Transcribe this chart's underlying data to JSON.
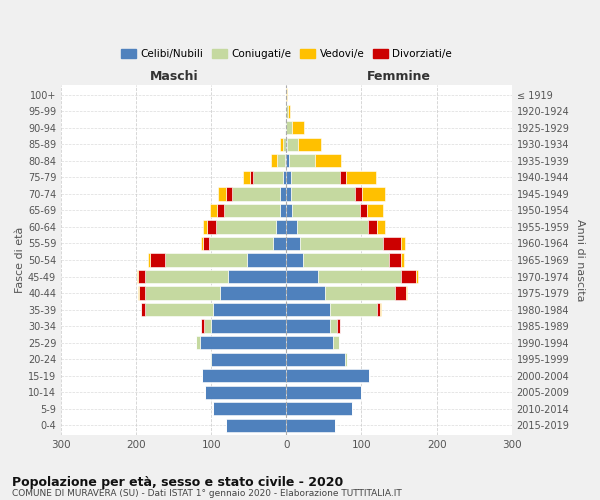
{
  "age_groups": [
    "0-4",
    "5-9",
    "10-14",
    "15-19",
    "20-24",
    "25-29",
    "30-34",
    "35-39",
    "40-44",
    "45-49",
    "50-54",
    "55-59",
    "60-64",
    "65-69",
    "70-74",
    "75-79",
    "80-84",
    "85-89",
    "90-94",
    "95-99",
    "100+"
  ],
  "birth_years": [
    "2015-2019",
    "2010-2014",
    "2005-2009",
    "2000-2004",
    "1995-1999",
    "1990-1994",
    "1985-1989",
    "1980-1984",
    "1975-1979",
    "1970-1974",
    "1965-1969",
    "1960-1964",
    "1955-1959",
    "1950-1954",
    "1945-1949",
    "1940-1944",
    "1935-1939",
    "1930-1934",
    "1925-1929",
    "1920-1924",
    "≤ 1919"
  ],
  "colors": {
    "celibi": "#4f81bd",
    "coniugati": "#c5d9a0",
    "vedovi": "#ffc000",
    "divorziati": "#cc0000"
  },
  "maschi": {
    "celibi": [
      80,
      98,
      108,
      112,
      100,
      115,
      100,
      98,
      88,
      78,
      52,
      18,
      14,
      8,
      8,
      4,
      2,
      1,
      0,
      0,
      0
    ],
    "coniugati": [
      0,
      0,
      0,
      0,
      2,
      5,
      10,
      90,
      100,
      110,
      110,
      85,
      80,
      75,
      65,
      40,
      10,
      4,
      2,
      0,
      0
    ],
    "vedovi": [
      0,
      0,
      0,
      0,
      0,
      0,
      0,
      0,
      1,
      1,
      2,
      3,
      5,
      8,
      10,
      10,
      8,
      4,
      0,
      0,
      0
    ],
    "divorziati": [
      0,
      0,
      0,
      0,
      0,
      0,
      3,
      5,
      8,
      10,
      20,
      8,
      12,
      10,
      8,
      4,
      0,
      0,
      0,
      0,
      0
    ]
  },
  "femmine": {
    "celibi": [
      65,
      88,
      100,
      110,
      78,
      62,
      58,
      58,
      52,
      42,
      22,
      18,
      14,
      8,
      6,
      6,
      3,
      1,
      0,
      0,
      0
    ],
    "coniugati": [
      0,
      0,
      0,
      0,
      3,
      8,
      10,
      62,
      92,
      110,
      115,
      110,
      95,
      90,
      85,
      65,
      35,
      15,
      8,
      2,
      0
    ],
    "vedovi": [
      0,
      0,
      0,
      0,
      0,
      0,
      0,
      1,
      2,
      3,
      5,
      5,
      10,
      20,
      30,
      40,
      35,
      30,
      15,
      3,
      1
    ],
    "divorziati": [
      0,
      0,
      0,
      0,
      0,
      0,
      3,
      5,
      15,
      20,
      15,
      25,
      12,
      10,
      10,
      8,
      0,
      0,
      0,
      0,
      0
    ]
  },
  "title": "Popolazione per età, sesso e stato civile - 2020",
  "subtitle": "COMUNE DI MURAVERA (SU) - Dati ISTAT 1° gennaio 2020 - Elaborazione TUTTITALIA.IT",
  "xlabel_left": "Maschi",
  "xlabel_right": "Femmine",
  "ylabel_left": "Fasce di età",
  "ylabel_right": "Anni di nascita",
  "xlim": 300,
  "legend_labels": [
    "Celibi/Nubili",
    "Coniugati/e",
    "Vedovi/e",
    "Divorziati/e"
  ],
  "bg_color": "#f0f0f0",
  "plot_bg": "#ffffff",
  "grid_color": "#cccccc"
}
